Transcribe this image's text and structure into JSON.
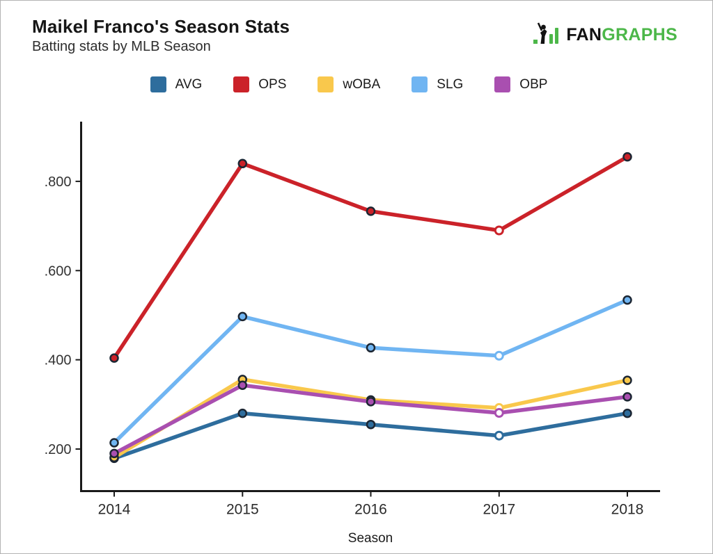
{
  "page": {
    "title": "Maikel Franco's Season Stats",
    "subtitle": "Batting stats by MLB Season"
  },
  "logo": {
    "text_black": "FAN",
    "text_green": "GRAPHS",
    "green": "#4CB749",
    "black": "#121212"
  },
  "chart_data": {
    "type": "line",
    "title": "Maikel Franco's Season Stats",
    "subtitle": "Batting stats by MLB Season",
    "xlabel": "Season",
    "ylabel": "",
    "categories": [
      "2014",
      "2015",
      "2016",
      "2017",
      "2018"
    ],
    "series": [
      {
        "name": "AVG",
        "color": "#2E6D9D",
        "values": [
          0.179,
          0.28,
          0.255,
          0.23,
          0.28
        ]
      },
      {
        "name": "OPS",
        "color": "#CB2229",
        "values": [
          0.404,
          0.84,
          0.733,
          0.69,
          0.855
        ]
      },
      {
        "name": "wOBA",
        "color": "#F9C84C",
        "values": [
          0.181,
          0.356,
          0.31,
          0.292,
          0.354
        ]
      },
      {
        "name": "SLG",
        "color": "#70B5F2",
        "values": [
          0.214,
          0.497,
          0.427,
          0.409,
          0.534
        ]
      },
      {
        "name": "OBP",
        "color": "#A94FB0",
        "values": [
          0.19,
          0.343,
          0.306,
          0.281,
          0.317
        ]
      }
    ],
    "y_ticks": [
      {
        "label": ".200",
        "value": 0.2
      },
      {
        "label": ".400",
        "value": 0.4
      },
      {
        "label": ".600",
        "value": 0.6
      },
      {
        "label": ".800",
        "value": 0.8
      }
    ],
    "ylim": [
      0.106,
      0.932
    ],
    "grid": false,
    "legend_position": "top-center",
    "open_marker_category": "2017",
    "marker_stroke": "#1C2633",
    "axis_color": "#1A1A1A",
    "tick_label_color": "#333333",
    "x_label_color": "#2B2B2B"
  }
}
